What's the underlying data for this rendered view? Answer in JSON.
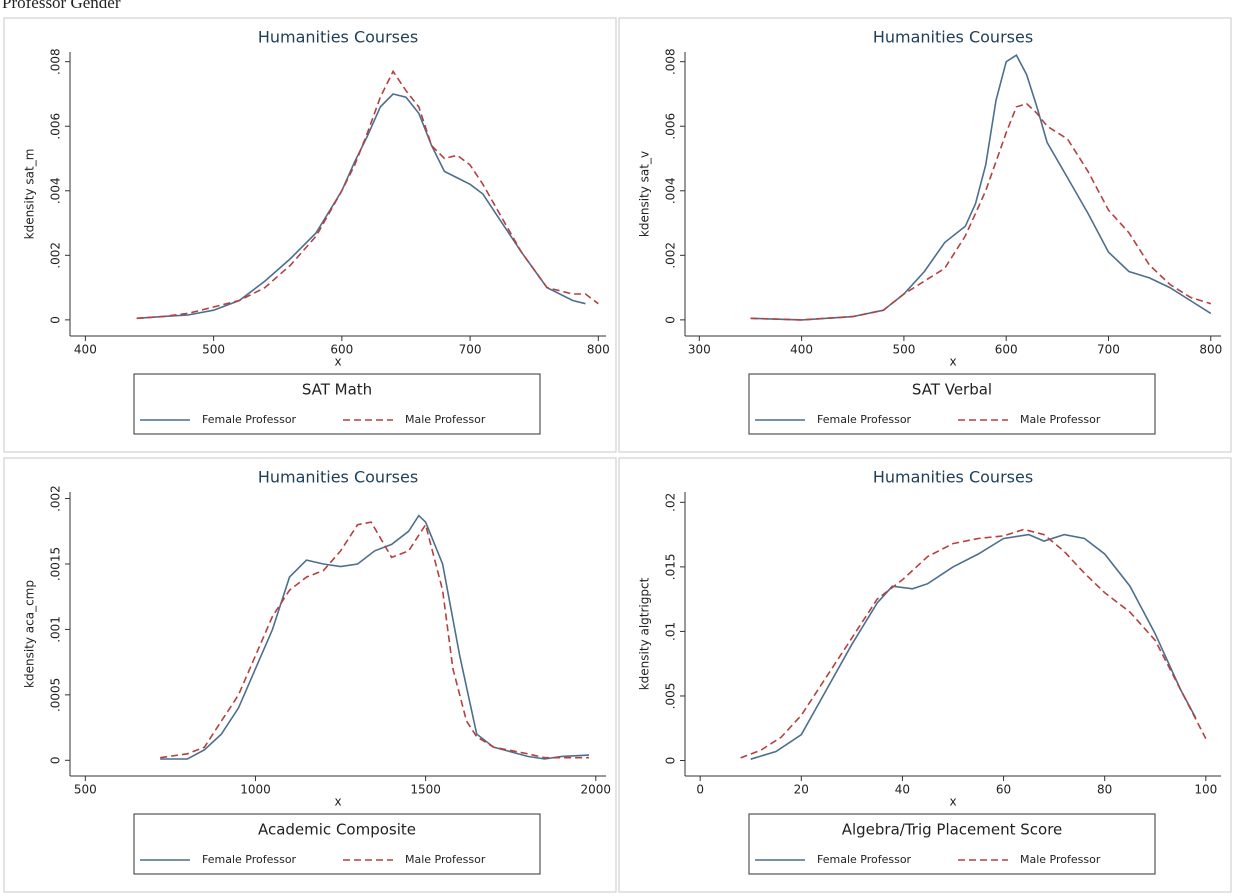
{
  "header": "Professor Gender",
  "chart_data": [
    {
      "type": "line",
      "title": "Humanities Courses",
      "x_label": "x",
      "y_label": "kdensity sat_m",
      "legend_title": "SAT Math",
      "xlim": [
        388,
        806
      ],
      "ylim": [
        -0.0005,
        0.0083
      ],
      "xticks": [
        400,
        500,
        600,
        700,
        800
      ],
      "yticks": [
        0,
        {
          "value": 0.002,
          "label": ".002"
        },
        {
          "value": 0.004,
          "label": ".004"
        },
        {
          "value": 0.006,
          "label": ".006"
        },
        {
          "value": 0.008,
          "label": ".008"
        }
      ],
      "series": [
        {
          "name": "Female Professor",
          "color": "#4d6f8f",
          "line_style": "solid",
          "x": [
            440,
            460,
            480,
            500,
            520,
            540,
            560,
            580,
            600,
            610,
            620,
            630,
            640,
            650,
            660,
            670,
            680,
            690,
            700,
            710,
            720,
            740,
            760,
            780,
            790
          ],
          "values": [
            5e-05,
            0.0001,
            0.00015,
            0.0003,
            0.0006,
            0.0012,
            0.0019,
            0.0027,
            0.004,
            0.0049,
            0.0057,
            0.0066,
            0.007,
            0.0069,
            0.0064,
            0.0054,
            0.0046,
            0.0044,
            0.0042,
            0.0039,
            0.0033,
            0.0021,
            0.001,
            0.0006,
            0.0005
          ]
        },
        {
          "name": "Male Professor",
          "color": "#b5413e",
          "line_style": "dashed",
          "x": [
            440,
            460,
            480,
            500,
            520,
            540,
            560,
            580,
            600,
            610,
            620,
            630,
            640,
            650,
            660,
            670,
            680,
            690,
            700,
            710,
            720,
            740,
            760,
            780,
            790,
            800
          ],
          "values": [
            5e-05,
            0.0001,
            0.0002,
            0.0004,
            0.0006,
            0.001,
            0.0017,
            0.0026,
            0.004,
            0.0048,
            0.0058,
            0.0069,
            0.0077,
            0.0071,
            0.0066,
            0.0054,
            0.005,
            0.0051,
            0.0048,
            0.0042,
            0.0035,
            0.0021,
            0.001,
            0.0008,
            0.0008,
            0.0005
          ]
        }
      ]
    },
    {
      "type": "line",
      "title": "Humanities Courses",
      "x_label": "x",
      "y_label": "kdensity sat_v",
      "legend_title": "SAT Verbal",
      "xlim": [
        286,
        810
      ],
      "ylim": [
        -0.0005,
        0.0083
      ],
      "xticks": [
        300,
        400,
        500,
        600,
        700,
        800
      ],
      "yticks": [
        0,
        {
          "value": 0.002,
          "label": ".002"
        },
        {
          "value": 0.004,
          "label": ".004"
        },
        {
          "value": 0.006,
          "label": ".006"
        },
        {
          "value": 0.008,
          "label": ".008"
        }
      ],
      "series": [
        {
          "name": "Female Professor",
          "color": "#4d6f8f",
          "line_style": "solid",
          "x": [
            350,
            400,
            450,
            480,
            500,
            520,
            540,
            560,
            570,
            580,
            590,
            600,
            610,
            620,
            630,
            640,
            660,
            680,
            700,
            720,
            740,
            760,
            780,
            800
          ],
          "values": [
            5e-05,
            0,
            0.0001,
            0.0003,
            0.0008,
            0.0015,
            0.0024,
            0.0029,
            0.0036,
            0.0048,
            0.0068,
            0.008,
            0.0082,
            0.0076,
            0.0066,
            0.0055,
            0.0044,
            0.0033,
            0.0021,
            0.0015,
            0.0013,
            0.001,
            0.0006,
            0.0002
          ]
        },
        {
          "name": "Male Professor",
          "color": "#b5413e",
          "line_style": "dashed",
          "x": [
            350,
            400,
            450,
            480,
            500,
            520,
            540,
            560,
            580,
            600,
            610,
            620,
            630,
            640,
            660,
            680,
            700,
            720,
            740,
            760,
            780,
            800
          ],
          "values": [
            5e-05,
            0,
            0.0001,
            0.0003,
            0.0008,
            0.0012,
            0.0016,
            0.0026,
            0.004,
            0.0058,
            0.0066,
            0.0067,
            0.0064,
            0.006,
            0.0056,
            0.0046,
            0.0034,
            0.0027,
            0.0017,
            0.0011,
            0.0007,
            0.0005
          ]
        }
      ]
    },
    {
      "type": "line",
      "title": "Humanities Courses",
      "x_label": "x",
      "y_label": "kdensity aca_cmp",
      "legend_title": "Academic Composite",
      "xlim": [
        455,
        2030
      ],
      "ylim": [
        -0.00012,
        0.00205
      ],
      "xticks": [
        500,
        1000,
        1500,
        2000
      ],
      "yticks": [
        0,
        {
          "value": 0.0005,
          "label": ".0005"
        },
        {
          "value": 0.001,
          "label": ".001"
        },
        {
          "value": 0.0015,
          "label": ".0015"
        },
        {
          "value": 0.002,
          "label": ".002"
        }
      ],
      "series": [
        {
          "name": "Female Professor",
          "color": "#4d6f8f",
          "line_style": "solid",
          "x": [
            720,
            800,
            850,
            900,
            950,
            1000,
            1050,
            1100,
            1150,
            1200,
            1250,
            1300,
            1350,
            1400,
            1450,
            1480,
            1500,
            1550,
            1600,
            1650,
            1700,
            1800,
            1850,
            1900,
            1980
          ],
          "values": [
            1e-05,
            1e-05,
            8e-05,
            0.0002,
            0.0004,
            0.0007,
            0.001,
            0.0014,
            0.00153,
            0.0015,
            0.00148,
            0.0015,
            0.0016,
            0.00165,
            0.00175,
            0.00187,
            0.00182,
            0.0015,
            0.0008,
            0.0002,
            0.0001,
            3e-05,
            1e-05,
            3e-05,
            4e-05
          ]
        },
        {
          "name": "Male Professor",
          "color": "#b5413e",
          "line_style": "dashed",
          "x": [
            720,
            800,
            850,
            900,
            950,
            1000,
            1050,
            1100,
            1150,
            1200,
            1250,
            1300,
            1340,
            1400,
            1450,
            1500,
            1550,
            1580,
            1620,
            1650,
            1700,
            1800,
            1850,
            1980
          ],
          "values": [
            2e-05,
            5e-05,
            0.0001,
            0.0003,
            0.0005,
            0.0008,
            0.0011,
            0.0013,
            0.0014,
            0.00145,
            0.0016,
            0.0018,
            0.00182,
            0.00155,
            0.0016,
            0.0018,
            0.0013,
            0.0007,
            0.0003,
            0.00018,
            0.0001,
            5e-05,
            2e-05,
            2e-05
          ]
        }
      ]
    },
    {
      "type": "line",
      "title": "Humanities Courses",
      "x_label": "x",
      "y_label": "kdensity algtrigpct",
      "legend_title": "Algebra/Trig Placement Score",
      "xlim": [
        -3,
        103
      ],
      "ylim": [
        -0.0012,
        0.0208
      ],
      "xticks": [
        0,
        20,
        40,
        60,
        80,
        100
      ],
      "yticks": [
        0,
        {
          "value": 0.005,
          "label": ".005"
        },
        {
          "value": 0.01,
          "label": ".01"
        },
        {
          "value": 0.015,
          "label": ".015"
        },
        {
          "value": 0.02,
          "label": ".02"
        }
      ],
      "series": [
        {
          "name": "Female Professor",
          "color": "#4d6f8f",
          "line_style": "solid",
          "x": [
            10,
            15,
            20,
            25,
            30,
            35,
            38,
            42,
            45,
            50,
            55,
            60,
            65,
            68,
            72,
            76,
            80,
            85,
            90,
            95,
            98
          ],
          "values": [
            0.0001,
            0.0007,
            0.002,
            0.0055,
            0.009,
            0.0122,
            0.0135,
            0.0133,
            0.0137,
            0.015,
            0.016,
            0.0172,
            0.0175,
            0.017,
            0.0175,
            0.0172,
            0.016,
            0.0135,
            0.0098,
            0.0055,
            0.0033
          ]
        },
        {
          "name": "Male Professor",
          "color": "#b5413e",
          "line_style": "dashed",
          "x": [
            8,
            12,
            16,
            20,
            25,
            30,
            35,
            40,
            45,
            50,
            55,
            60,
            64,
            68,
            72,
            76,
            80,
            85,
            90,
            95,
            100
          ],
          "values": [
            0.0002,
            0.0008,
            0.0018,
            0.0035,
            0.0065,
            0.0095,
            0.0125,
            0.014,
            0.0158,
            0.0168,
            0.0172,
            0.0174,
            0.0179,
            0.0175,
            0.0162,
            0.0145,
            0.013,
            0.0115,
            0.0093,
            0.0055,
            0.0017
          ]
        }
      ]
    }
  ]
}
